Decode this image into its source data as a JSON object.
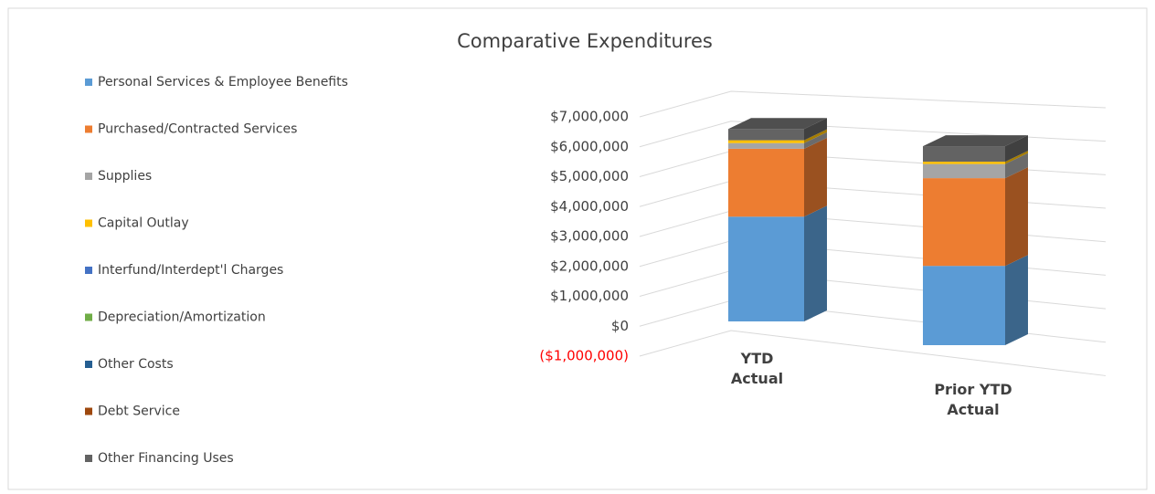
{
  "chart_data": {
    "type": "bar3d_stacked",
    "title": "Comparative Expenditures",
    "categories": [
      "YTD Actual",
      "Prior YTD Actual"
    ],
    "series": [
      {
        "name": "Personal Services & Employee Benefits",
        "color": "#5b9bd5",
        "values": [
          3700000,
          2800000
        ]
      },
      {
        "name": "Purchased/Contracted Services",
        "color": "#ed7d31",
        "values": [
          2400000,
          3100000
        ]
      },
      {
        "name": "Supplies",
        "color": "#a5a5a5",
        "values": [
          200000,
          500000
        ]
      },
      {
        "name": "Capital Outlay",
        "color": "#ffc000",
        "values": [
          100000,
          80000
        ]
      },
      {
        "name": "Interfund/Interdept'l Charges",
        "color": "#4472c4",
        "values": [
          0,
          0
        ]
      },
      {
        "name": "Depreciation/Amortization",
        "color": "#70ad47",
        "values": [
          0,
          0
        ]
      },
      {
        "name": "Other Costs",
        "color": "#255e91",
        "values": [
          0,
          0
        ]
      },
      {
        "name": "Debt Service",
        "color": "#9e480e",
        "values": [
          0,
          0
        ]
      },
      {
        "name": "Other Financing Uses",
        "color": "#636363",
        "values": [
          400000,
          550000
        ]
      }
    ],
    "ylim": [
      -1000000,
      7000000
    ],
    "yticks": [
      {
        "value": -1000000,
        "label": "($1,000,000)"
      },
      {
        "value": 0,
        "label": "$0"
      },
      {
        "value": 1000000,
        "label": "$1,000,000"
      },
      {
        "value": 2000000,
        "label": "$2,000,000"
      },
      {
        "value": 3000000,
        "label": "$3,000,000"
      },
      {
        "value": 4000000,
        "label": "$4,000,000"
      },
      {
        "value": 5000000,
        "label": "$5,000,000"
      },
      {
        "value": 6000000,
        "label": "$6,000,000"
      },
      {
        "value": 7000000,
        "label": "$7,000,000"
      }
    ],
    "negative_tick_color": "#ff0000",
    "grid": true,
    "legend": "left"
  }
}
